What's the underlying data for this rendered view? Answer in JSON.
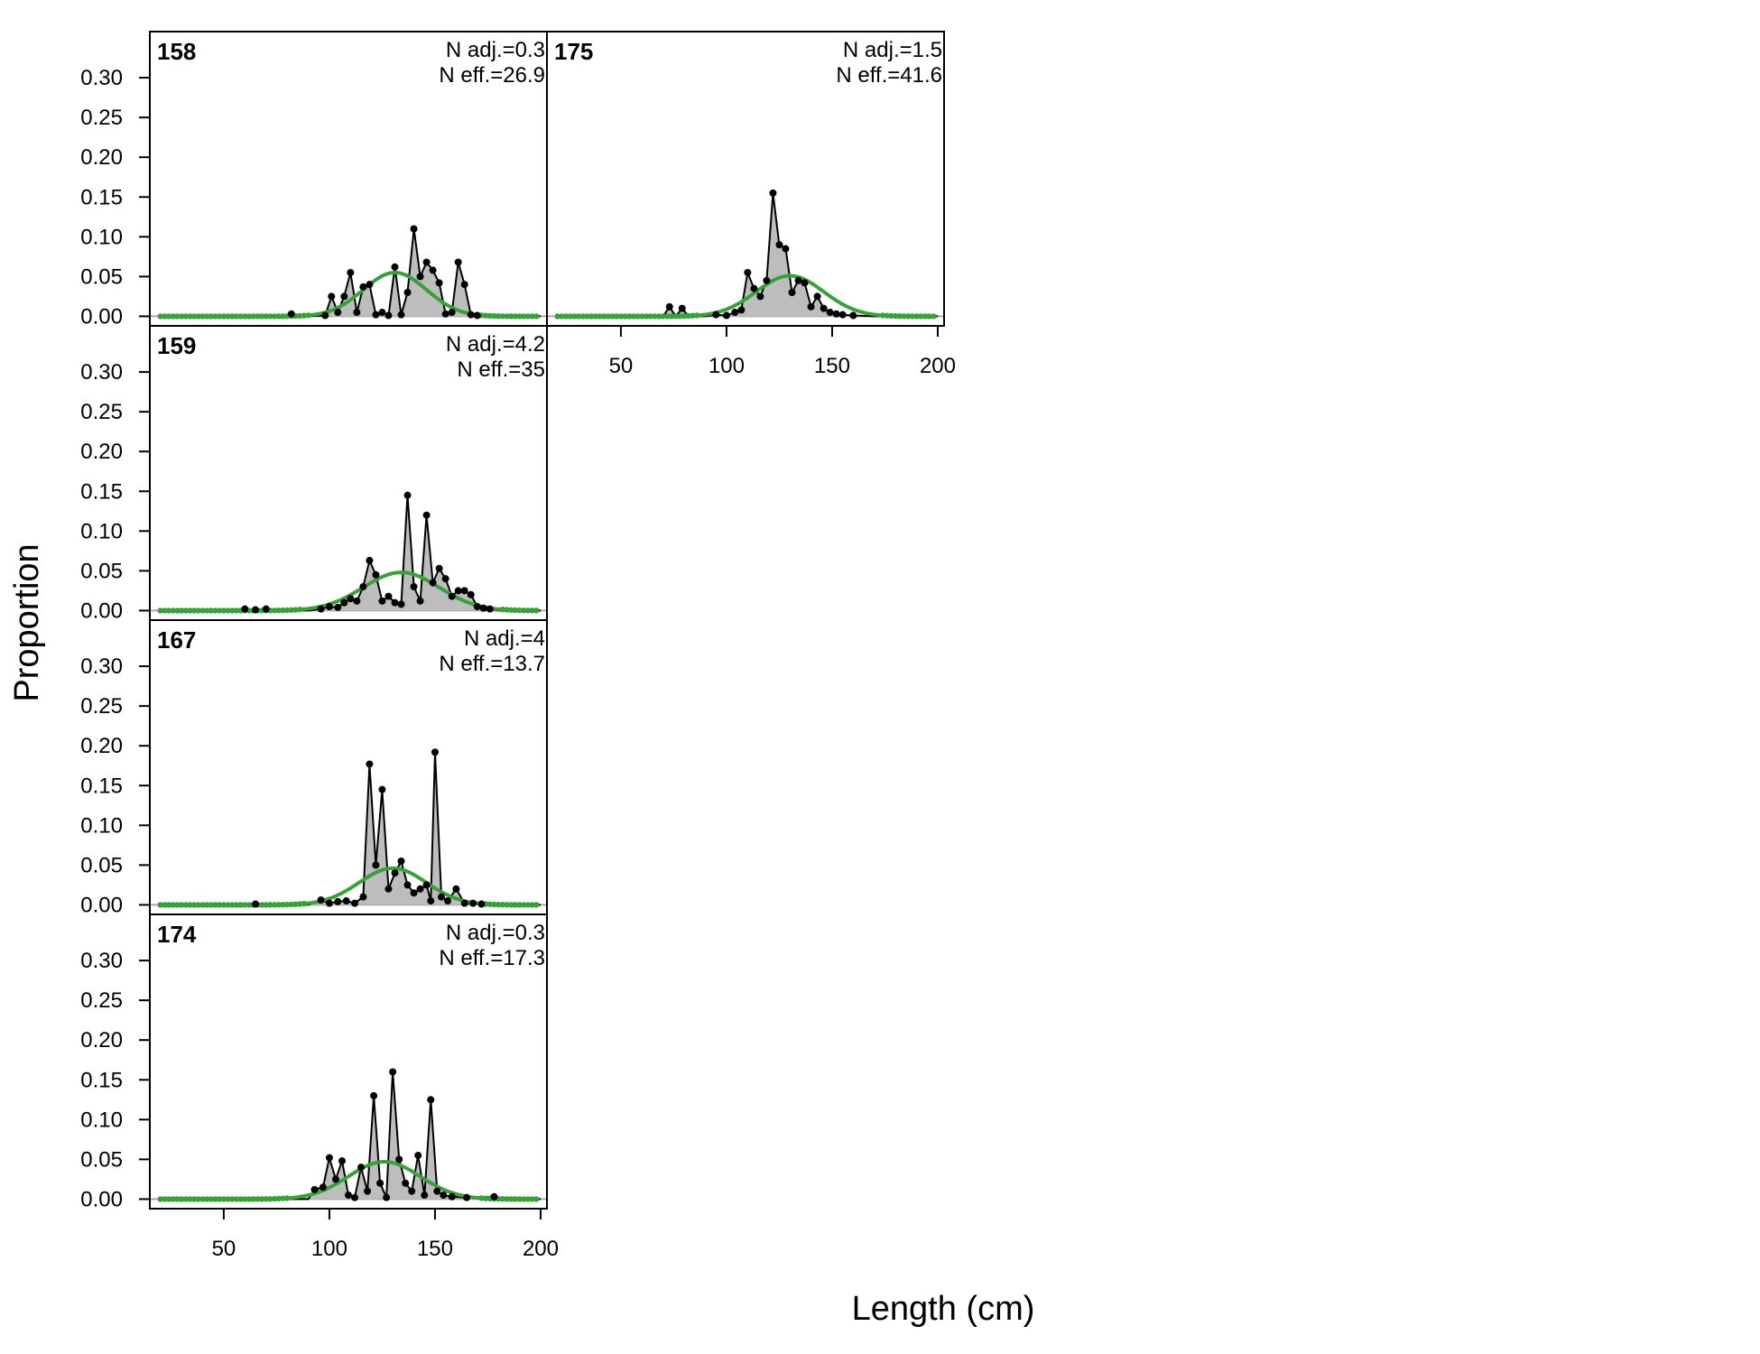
{
  "chart_data": {
    "type": "line",
    "xlabel": "Length (cm)",
    "ylabel": "Proportion",
    "xlim": [
      15,
      203
    ],
    "ylim": [
      -0.012,
      0.358
    ],
    "x_ticks": [
      50,
      100,
      150,
      200
    ],
    "y_ticks": [
      "0.00",
      "0.05",
      "0.10",
      "0.15",
      "0.20",
      "0.25",
      "0.30"
    ],
    "colors": {
      "observed_fill": "#bdbdbd",
      "observed_line": "#000000",
      "expected": "#3aa03a",
      "zero_line": "#aaaaaa"
    },
    "panels": [
      {
        "id": "158",
        "n_adj": "N adj.=0.3",
        "n_eff": "N eff.=26.9",
        "observed": [
          [
            20,
            0
          ],
          [
            40,
            0
          ],
          [
            60,
            0
          ],
          [
            80,
            0
          ],
          [
            82,
            0.003
          ],
          [
            90,
            0
          ],
          [
            98,
            0.001
          ],
          [
            101,
            0.025
          ],
          [
            104,
            0.005
          ],
          [
            107,
            0.025
          ],
          [
            110,
            0.055
          ],
          [
            113,
            0.005
          ],
          [
            116,
            0.037
          ],
          [
            119,
            0.04
          ],
          [
            122,
            0.002
          ],
          [
            125,
            0.005
          ],
          [
            128,
            0.001
          ],
          [
            131,
            0.062
          ],
          [
            134,
            0.002
          ],
          [
            137,
            0.03
          ],
          [
            140,
            0.11
          ],
          [
            143,
            0.05
          ],
          [
            146,
            0.068
          ],
          [
            149,
            0.058
          ],
          [
            152,
            0.042
          ],
          [
            155,
            0.003
          ],
          [
            158,
            0.005
          ],
          [
            161,
            0.068
          ],
          [
            164,
            0.04
          ],
          [
            167,
            0.002
          ],
          [
            170,
            0.001
          ],
          [
            180,
            0
          ],
          [
            200,
            0
          ]
        ],
        "expected": {
          "mean": 131,
          "sd": 15,
          "peak": 0.055
        }
      },
      {
        "id": "175",
        "n_adj": "N adj.=1.5",
        "n_eff": "N eff.=41.6",
        "observed": [
          [
            20,
            0
          ],
          [
            40,
            0
          ],
          [
            60,
            0
          ],
          [
            70,
            0
          ],
          [
            73,
            0.012
          ],
          [
            76,
            0
          ],
          [
            79,
            0.01
          ],
          [
            82,
            0
          ],
          [
            90,
            0
          ],
          [
            95,
            0.002
          ],
          [
            100,
            0.001
          ],
          [
            104,
            0.005
          ],
          [
            107,
            0.008
          ],
          [
            110,
            0.055
          ],
          [
            113,
            0.035
          ],
          [
            116,
            0.025
          ],
          [
            119,
            0.045
          ],
          [
            122,
            0.155
          ],
          [
            125,
            0.09
          ],
          [
            128,
            0.085
          ],
          [
            131,
            0.03
          ],
          [
            134,
            0.045
          ],
          [
            137,
            0.042
          ],
          [
            140,
            0.012
          ],
          [
            143,
            0.025
          ],
          [
            146,
            0.01
          ],
          [
            149,
            0.005
          ],
          [
            152,
            0.003
          ],
          [
            155,
            0.002
          ],
          [
            160,
            0.001
          ],
          [
            170,
            0
          ],
          [
            200,
            0
          ]
        ],
        "expected": {
          "mean": 130,
          "sd": 16,
          "peak": 0.051
        }
      },
      {
        "id": "159",
        "n_adj": "N adj.=4.2",
        "n_eff": "N eff.=35",
        "observed": [
          [
            20,
            0
          ],
          [
            40,
            0
          ],
          [
            55,
            0
          ],
          [
            60,
            0.002
          ],
          [
            65,
            0.001
          ],
          [
            70,
            0.002
          ],
          [
            80,
            0
          ],
          [
            90,
            0
          ],
          [
            96,
            0.002
          ],
          [
            100,
            0.005
          ],
          [
            104,
            0.004
          ],
          [
            107,
            0.01
          ],
          [
            110,
            0.015
          ],
          [
            113,
            0.012
          ],
          [
            116,
            0.03
          ],
          [
            119,
            0.063
          ],
          [
            122,
            0.045
          ],
          [
            125,
            0.012
          ],
          [
            128,
            0.018
          ],
          [
            131,
            0.01
          ],
          [
            134,
            0.008
          ],
          [
            137,
            0.145
          ],
          [
            140,
            0.03
          ],
          [
            143,
            0.012
          ],
          [
            146,
            0.12
          ],
          [
            149,
            0.035
          ],
          [
            152,
            0.053
          ],
          [
            155,
            0.04
          ],
          [
            158,
            0.018
          ],
          [
            161,
            0.025
          ],
          [
            164,
            0.025
          ],
          [
            167,
            0.02
          ],
          [
            170,
            0.005
          ],
          [
            173,
            0.003
          ],
          [
            176,
            0.002
          ],
          [
            180,
            0
          ],
          [
            200,
            0
          ]
        ],
        "expected": {
          "mean": 134,
          "sd": 18,
          "peak": 0.048
        }
      },
      {
        "id": "167",
        "n_adj": "N adj.=4",
        "n_eff": "N eff.=13.7",
        "observed": [
          [
            20,
            0
          ],
          [
            40,
            0
          ],
          [
            65,
            0.001
          ],
          [
            80,
            0
          ],
          [
            90,
            0
          ],
          [
            96,
            0.006
          ],
          [
            100,
            0.002
          ],
          [
            104,
            0.004
          ],
          [
            108,
            0.005
          ],
          [
            112,
            0.002
          ],
          [
            116,
            0.01
          ],
          [
            119,
            0.177
          ],
          [
            122,
            0.05
          ],
          [
            125,
            0.145
          ],
          [
            128,
            0.02
          ],
          [
            131,
            0.04
          ],
          [
            134,
            0.055
          ],
          [
            137,
            0.025
          ],
          [
            140,
            0.015
          ],
          [
            143,
            0.02
          ],
          [
            146,
            0.025
          ],
          [
            148,
            0.005
          ],
          [
            150,
            0.192
          ],
          [
            153,
            0.01
          ],
          [
            156,
            0.005
          ],
          [
            160,
            0.02
          ],
          [
            164,
            0.002
          ],
          [
            168,
            0.002
          ],
          [
            172,
            0.001
          ],
          [
            180,
            0
          ],
          [
            200,
            0
          ]
        ],
        "expected": {
          "mean": 130,
          "sd": 16,
          "peak": 0.046
        }
      },
      {
        "id": "174",
        "n_adj": "N adj.=0.3",
        "n_eff": "N eff.=17.3",
        "observed": [
          [
            20,
            0
          ],
          [
            40,
            0
          ],
          [
            60,
            0
          ],
          [
            80,
            0
          ],
          [
            90,
            0
          ],
          [
            93,
            0.012
          ],
          [
            97,
            0.015
          ],
          [
            100,
            0.052
          ],
          [
            103,
            0.025
          ],
          [
            106,
            0.048
          ],
          [
            109,
            0.005
          ],
          [
            112,
            0.002
          ],
          [
            115,
            0.04
          ],
          [
            118,
            0.01
          ],
          [
            121,
            0.13
          ],
          [
            124,
            0.02
          ],
          [
            127,
            0.002
          ],
          [
            130,
            0.16
          ],
          [
            133,
            0.05
          ],
          [
            136,
            0.02
          ],
          [
            139,
            0.01
          ],
          [
            142,
            0.055
          ],
          [
            145,
            0.005
          ],
          [
            148,
            0.125
          ],
          [
            151,
            0.01
          ],
          [
            154,
            0.005
          ],
          [
            158,
            0.003
          ],
          [
            165,
            0.002
          ],
          [
            178,
            0.003
          ],
          [
            185,
            0
          ],
          [
            200,
            0
          ]
        ],
        "expected": {
          "mean": 126,
          "sd": 17,
          "peak": 0.047
        }
      }
    ]
  }
}
